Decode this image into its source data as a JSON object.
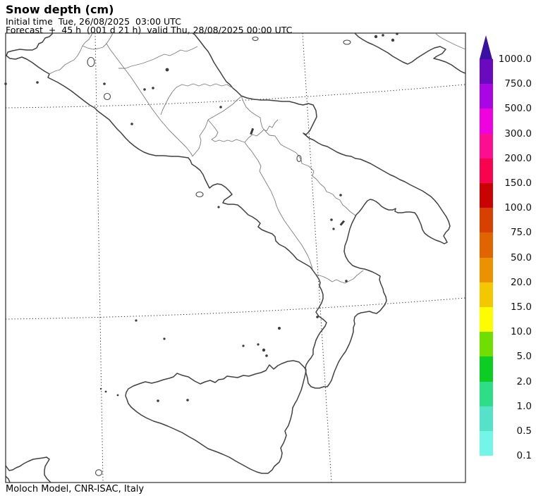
{
  "header": {
    "title": "Snow depth (cm)",
    "line2": "Initial time  Tue, 26/08/2025  03:00 UTC",
    "line3": "Forecast  +  45 h  (001 d 21 h)  valid Thu, 28/08/2025 00:00 UTC"
  },
  "footer": {
    "attribution": "Moloch Model, CNR-ISAC, Italy"
  },
  "colorbar": {
    "unit": "cm",
    "orientation": "vertical",
    "arrow_color": "#3A10A2",
    "ticks": [
      "1000.0",
      "750.0",
      "500.0",
      "300.0",
      "200.0",
      "150.0",
      "100.0",
      "75.0",
      "50.0",
      "20.0",
      "15.0",
      "10.0",
      "5.0",
      "2.0",
      "1.0",
      "0.5",
      "0.1"
    ],
    "segment_colors": [
      "#6A0ABE",
      "#A906E6",
      "#EE02DE",
      "#FB0F90",
      "#F7034E",
      "#C90301",
      "#D84000",
      "#E06400",
      "#EC9200",
      "#F3C800",
      "#FDFD00",
      "#6FDE00",
      "#0DCD24",
      "#2FDD88",
      "#55E2C8",
      "#73F6E7"
    ]
  },
  "map": {
    "region_shown": "Southern Italy and Sicily",
    "grid_style": "dotted",
    "coast_color": "#414141",
    "region_border_color": "#7d7d7d",
    "background_color": "#ffffff"
  }
}
